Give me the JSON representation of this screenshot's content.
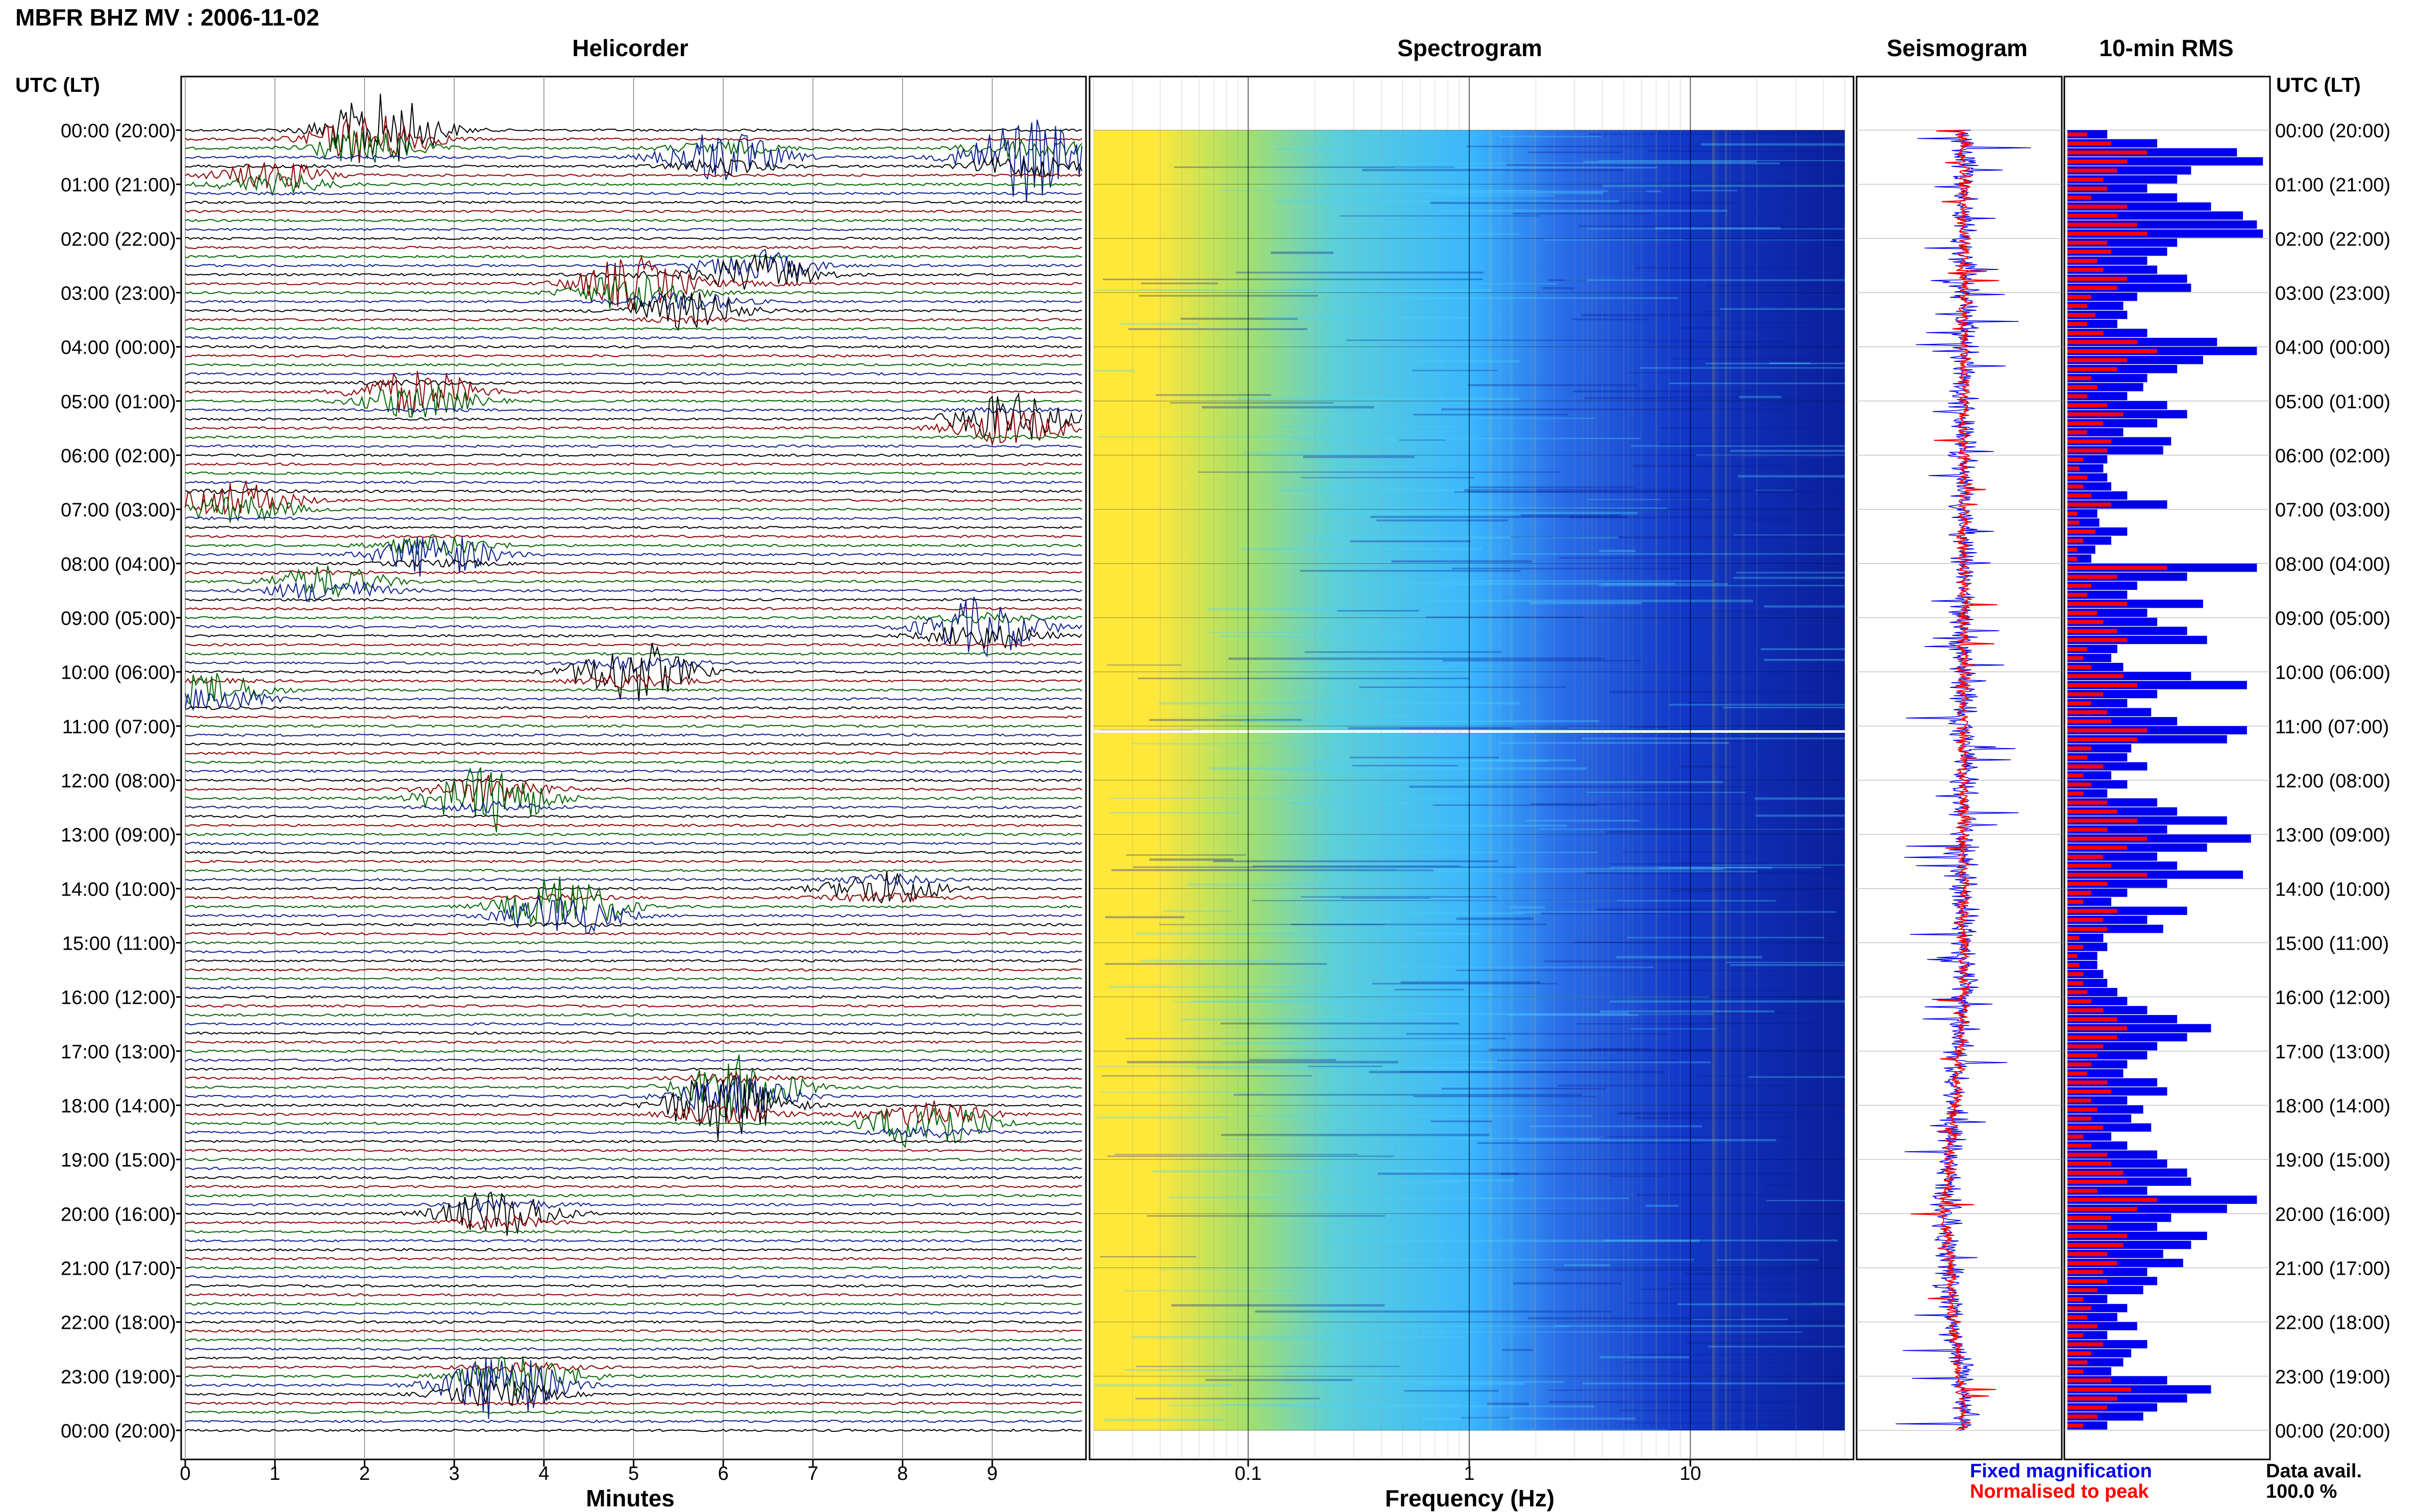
{
  "header": {
    "title": "MBFR BHZ MV : 2006-11-02",
    "panel_titles": {
      "helicorder": "Helicorder",
      "spectrogram": "Spectrogram",
      "seismogram": "Seismogram",
      "rms": "10-min RMS"
    },
    "left_axis_title": "UTC (LT)",
    "right_axis_title": "UTC (LT)"
  },
  "footer": {
    "helicorder_xlabel": "Minutes",
    "spectrogram_xlabel": "Frequency (Hz)",
    "legend_fixed": "Fixed magnification",
    "legend_normalised": "Normalised to peak",
    "data_avail_label": "Data avail.",
    "data_avail_value": "100.0 %"
  },
  "colors": {
    "helicorder_traces": [
      "#000000",
      "#8b0000",
      "#006400",
      "#0b1f8f"
    ],
    "fixed_magnification": "#0000ee",
    "normalised_to_peak": "#ff0000",
    "spectrogram_low": "#ffe83a",
    "spectrogram_mid": "#3ab8ff",
    "spectrogram_high": "#0a1f9a"
  },
  "chart_data": [
    {
      "type": "line",
      "name": "helicorder",
      "title": "Helicorder",
      "xlabel": "Minutes",
      "x_ticks": [
        "0",
        "1",
        "2",
        "3",
        "4",
        "5",
        "6",
        "7",
        "8",
        "9"
      ],
      "xlim": [
        0,
        10
      ],
      "y_ticks": [
        "00:00 (20:00)",
        "01:00 (21:00)",
        "02:00 (22:00)",
        "03:00 (23:00)",
        "04:00 (00:00)",
        "05:00 (01:00)",
        "06:00 (02:00)",
        "07:00 (03:00)",
        "08:00 (04:00)",
        "09:00 (05:00)",
        "10:00 (06:00)",
        "11:00 (07:00)",
        "12:00 (08:00)",
        "13:00 (09:00)",
        "14:00 (10:00)",
        "15:00 (11:00)",
        "16:00 (12:00)",
        "17:00 (13:00)",
        "18:00 (14:00)",
        "19:00 (15:00)",
        "20:00 (16:00)",
        "21:00 (17:00)",
        "22:00 (18:00)",
        "23:00 (19:00)",
        "00:00 (20:00)"
      ],
      "trace_interval_minutes": 10,
      "events": [
        {
          "hour": 0.0,
          "minute": 2.2,
          "color": "#8b0000",
          "amp": 3.2
        },
        {
          "hour": 0.25,
          "minute": 2.0,
          "color": "#006400",
          "amp": 2.2
        },
        {
          "hour": 0.5,
          "minute": 6.0,
          "color": "#8b0000",
          "amp": 2.4
        },
        {
          "hour": 0.5,
          "minute": 9.4,
          "color": "#0b1f8f",
          "amp": 4.0
        },
        {
          "hour": 0.9,
          "minute": 1.0,
          "color": "#006400",
          "amp": 1.5
        },
        {
          "hour": 2.9,
          "minute": 5.0,
          "color": "#006400",
          "amp": 3.0
        },
        {
          "hour": 2.6,
          "minute": 6.4,
          "color": "#006400",
          "amp": 2.2
        },
        {
          "hour": 3.3,
          "minute": 5.6,
          "color": "#8b0000",
          "amp": 1.8
        },
        {
          "hour": 4.9,
          "minute": 2.6,
          "color": "#8b0000",
          "amp": 2.6
        },
        {
          "hour": 5.4,
          "minute": 9.2,
          "color": "#0b1f8f",
          "amp": 2.8
        },
        {
          "hour": 6.9,
          "minute": 0.6,
          "color": "#000000",
          "amp": 2.0
        },
        {
          "hour": 7.8,
          "minute": 2.8,
          "color": "#000000",
          "amp": 2.2
        },
        {
          "hour": 8.4,
          "minute": 1.6,
          "color": "#006400",
          "amp": 1.8
        },
        {
          "hour": 9.2,
          "minute": 8.9,
          "color": "#8b0000",
          "amp": 2.8
        },
        {
          "hour": 10.0,
          "minute": 5.0,
          "color": "#0b1f8f",
          "amp": 2.8
        },
        {
          "hour": 10.4,
          "minute": 0.3,
          "color": "#000000",
          "amp": 1.8
        },
        {
          "hour": 12.3,
          "minute": 3.4,
          "color": "#006400",
          "amp": 3.2
        },
        {
          "hour": 14.4,
          "minute": 4.2,
          "color": "#000000",
          "amp": 3.4
        },
        {
          "hour": 14.0,
          "minute": 7.8,
          "color": "#8b0000",
          "amp": 1.6
        },
        {
          "hour": 17.7,
          "minute": 6.2,
          "color": "#006400",
          "amp": 3.0
        },
        {
          "hour": 18.0,
          "minute": 6.0,
          "color": "#000000",
          "amp": 3.2
        },
        {
          "hour": 18.3,
          "minute": 8.3,
          "color": "#0b1f8f",
          "amp": 2.8
        },
        {
          "hour": 20.0,
          "minute": 3.5,
          "color": "#000000",
          "amp": 2.2
        },
        {
          "hour": 23.2,
          "minute": 3.5,
          "color": "#000000",
          "amp": 3.0
        },
        {
          "hour": 23.0,
          "minute": 3.8,
          "color": "#8b0000",
          "amp": 1.6
        }
      ]
    },
    {
      "type": "heatmap",
      "name": "spectrogram",
      "title": "Spectrogram",
      "xlabel": "Frequency (Hz)",
      "x_scale": "log",
      "x_ticks": [
        "0.1",
        "1",
        "10"
      ],
      "x_tick_values": [
        0.1,
        1,
        10
      ],
      "xlim": [
        0.02,
        50
      ],
      "ylim_hours": [
        0,
        24
      ],
      "colormap": [
        "#ffe83a",
        "#3ab8ff",
        "#0a1f9a"
      ]
    },
    {
      "type": "line",
      "name": "seismogram",
      "title": "Seismogram",
      "series": [
        {
          "name": "Fixed magnification",
          "color": "#0000ee"
        },
        {
          "name": "Normalised to peak",
          "color": "#ff0000"
        }
      ]
    },
    {
      "type": "bar",
      "name": "rms",
      "title": "10-min RMS",
      "orientation": "horizontal",
      "bin_minutes": 10,
      "series": [
        {
          "name": "Fixed magnification",
          "color": "#0000ee",
          "values": [
            0.2,
            0.45,
            0.85,
            0.98,
            0.62,
            0.55,
            0.4,
            0.55,
            0.72,
            0.88,
            0.95,
            0.98,
            0.55,
            0.5,
            0.4,
            0.45,
            0.6,
            0.62,
            0.35,
            0.28,
            0.3,
            0.25,
            0.4,
            0.75,
            0.95,
            0.68,
            0.55,
            0.4,
            0.38,
            0.3,
            0.5,
            0.6,
            0.45,
            0.28,
            0.52,
            0.48,
            0.2,
            0.18,
            0.2,
            0.22,
            0.3,
            0.5,
            0.15,
            0.16,
            0.3,
            0.22,
            0.14,
            0.12,
            0.95,
            0.6,
            0.35,
            0.3,
            0.68,
            0.4,
            0.45,
            0.6,
            0.7,
            0.25,
            0.22,
            0.28,
            0.62,
            0.9,
            0.45,
            0.3,
            0.42,
            0.55,
            0.9,
            0.8,
            0.32,
            0.3,
            0.4,
            0.22,
            0.3,
            0.2,
            0.45,
            0.55,
            0.8,
            0.5,
            0.92,
            0.7,
            0.45,
            0.55,
            0.88,
            0.5,
            0.3,
            0.22,
            0.6,
            0.4,
            0.48,
            0.18,
            0.2,
            0.15,
            0.15,
            0.18,
            0.2,
            0.25,
            0.3,
            0.4,
            0.55,
            0.72,
            0.6,
            0.45,
            0.4,
            0.3,
            0.28,
            0.45,
            0.5,
            0.3,
            0.38,
            0.32,
            0.42,
            0.22,
            0.3,
            0.45,
            0.5,
            0.6,
            0.62,
            0.4,
            0.95,
            0.8,
            0.52,
            0.45,
            0.7,
            0.62,
            0.48,
            0.58,
            0.4,
            0.45,
            0.38,
            0.2,
            0.3,
            0.25,
            0.35,
            0.2,
            0.4,
            0.32,
            0.28,
            0.22,
            0.5,
            0.72,
            0.6,
            0.45,
            0.38,
            0.2
          ],
          "values_note_omit": null
        },
        {
          "name": "Normalised to peak",
          "color": "#ff0000",
          "values": [
            0.1,
            0.22,
            0.4,
            0.3,
            0.25,
            0.18,
            0.2,
            0.12,
            0.3,
            0.25,
            0.35,
            0.4,
            0.2,
            0.22,
            0.15,
            0.18,
            0.3,
            0.25,
            0.12,
            0.1,
            0.14,
            0.1,
            0.18,
            0.35,
            0.45,
            0.3,
            0.25,
            0.12,
            0.15,
            0.1,
            0.2,
            0.28,
            0.18,
            0.1,
            0.22,
            0.2,
            0.08,
            0.06,
            0.1,
            0.08,
            0.12,
            0.22,
            0.05,
            0.06,
            0.14,
            0.08,
            0.05,
            0.05,
            0.5,
            0.25,
            0.12,
            0.1,
            0.3,
            0.15,
            0.18,
            0.25,
            0.3,
            0.1,
            0.08,
            0.12,
            0.28,
            0.35,
            0.18,
            0.12,
            0.2,
            0.22,
            0.4,
            0.35,
            0.12,
            0.1,
            0.18,
            0.08,
            0.12,
            0.08,
            0.2,
            0.25,
            0.35,
            0.2,
            0.4,
            0.3,
            0.18,
            0.22,
            0.4,
            0.2,
            0.12,
            0.08,
            0.25,
            0.18,
            0.2,
            0.06,
            0.08,
            0.05,
            0.06,
            0.08,
            0.08,
            0.1,
            0.12,
            0.18,
            0.25,
            0.3,
            0.25,
            0.18,
            0.15,
            0.12,
            0.1,
            0.2,
            0.22,
            0.12,
            0.15,
            0.12,
            0.18,
            0.08,
            0.12,
            0.2,
            0.22,
            0.28,
            0.3,
            0.15,
            0.45,
            0.35,
            0.22,
            0.2,
            0.3,
            0.28,
            0.2,
            0.25,
            0.18,
            0.2,
            0.15,
            0.08,
            0.12,
            0.1,
            0.15,
            0.08,
            0.18,
            0.12,
            0.1,
            0.08,
            0.22,
            0.32,
            0.25,
            0.2,
            0.15,
            0.08
          ]
        }
      ]
    }
  ]
}
